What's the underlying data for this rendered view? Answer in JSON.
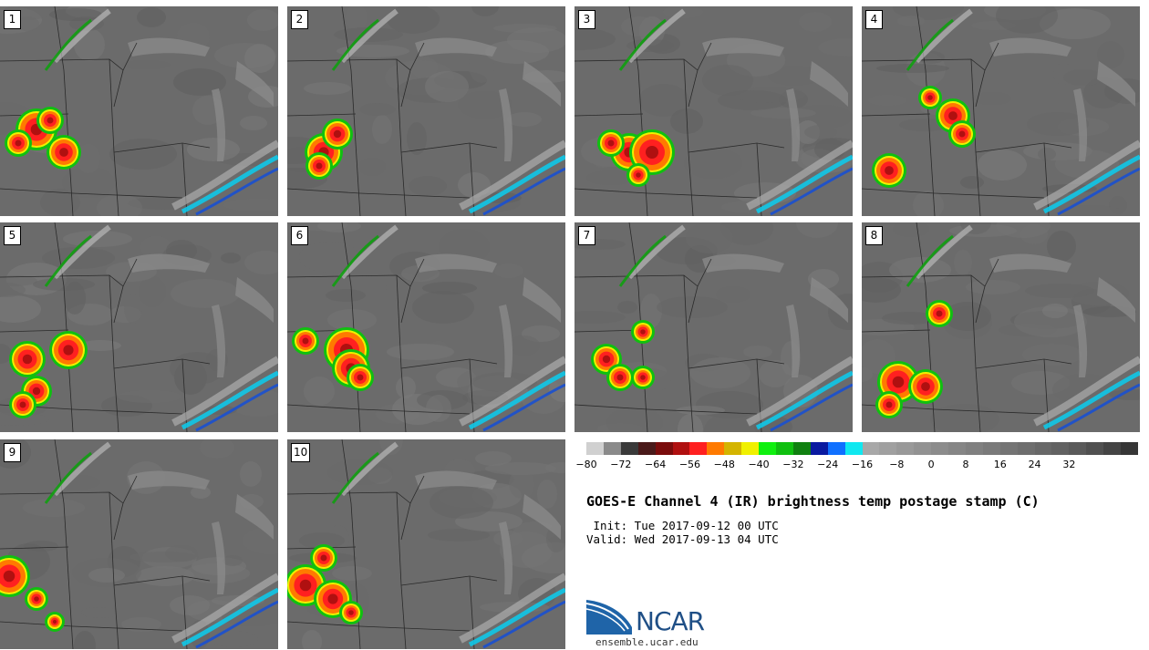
{
  "panels": [
    {
      "label": "1"
    },
    {
      "label": "2"
    },
    {
      "label": "3"
    },
    {
      "label": "4"
    },
    {
      "label": "5"
    },
    {
      "label": "6"
    },
    {
      "label": "7"
    },
    {
      "label": "8"
    },
    {
      "label": "9"
    },
    {
      "label": "10"
    }
  ],
  "colorbar": {
    "colors": [
      "#d0d0d0",
      "#8a8a8a",
      "#3a3a3a",
      "#4a1a1a",
      "#7a0c0c",
      "#b01010",
      "#ff2020",
      "#ff7a00",
      "#d4b400",
      "#f0f000",
      "#10f010",
      "#10c010",
      "#108010",
      "#0a1aa0",
      "#1070ff",
      "#10e8f0",
      "#a8a8a8",
      "#a0a0a0",
      "#999999",
      "#929292",
      "#8c8c8c",
      "#868686",
      "#808080",
      "#7a7a7a",
      "#747474",
      "#6e6e6e",
      "#686868",
      "#626262",
      "#5a5a5a",
      "#505050",
      "#444444",
      "#363636"
    ],
    "tick_labels": [
      "−80",
      "−72",
      "−64",
      "−56",
      "−48",
      "−40",
      "−32",
      "−24",
      "−16",
      "−8",
      "0",
      "8",
      "16",
      "24",
      "32"
    ]
  },
  "title": "GOES-E Channel 4 (IR) brightness temp postage stamp (C)",
  "init_line": " Init: Tue 2017-09-12 00 UTC",
  "valid_line": "Valid: Wed 2017-09-13 04 UTC",
  "logo_text": "NCAR",
  "site": "ensemble.ucar.edu"
}
